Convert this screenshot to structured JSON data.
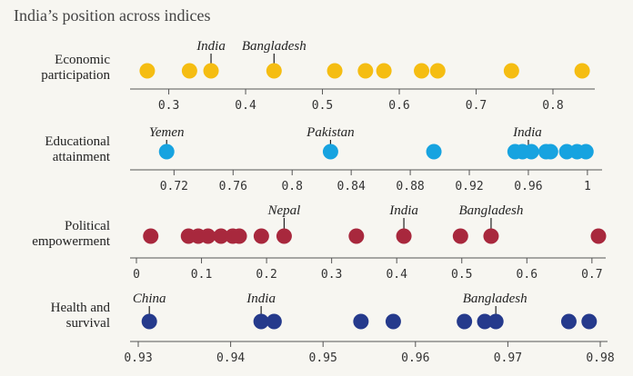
{
  "chart_data": {
    "type": "scatter",
    "title": "India’s position across indices",
    "colors": {
      "background": "#f7f6f1",
      "axis": "#555555",
      "economic": "#f5bd12",
      "education": "#17a3e0",
      "political": "#a8283d",
      "health": "#253a8c"
    },
    "panels": [
      {
        "id": "economic",
        "label_lines": [
          "Economic",
          "participation"
        ],
        "color_key": "economic",
        "range": [
          0.265,
          0.845
        ],
        "ticks": [
          {
            "v": 0.3,
            "t": "0.3"
          },
          {
            "v": 0.4,
            "t": "0.4"
          },
          {
            "v": 0.5,
            "t": "0.5"
          },
          {
            "v": 0.6,
            "t": "0.6"
          },
          {
            "v": 0.7,
            "t": "0.7"
          },
          {
            "v": 0.8,
            "t": "0.8"
          }
        ],
        "values": [
          0.272,
          0.327,
          0.355,
          0.437,
          0.516,
          0.556,
          0.58,
          0.629,
          0.65,
          0.746,
          0.838
        ],
        "annotations": [
          {
            "label": "India",
            "value": 0.355,
            "dx": 0
          },
          {
            "label": "Bangladesh",
            "value": 0.437,
            "dx": 0
          }
        ]
      },
      {
        "id": "education",
        "label_lines": [
          "Educational",
          "attainment"
        ],
        "color_key": "education",
        "range": [
          0.705,
          1.005
        ],
        "ticks": [
          {
            "v": 0.72,
            "t": "0.72"
          },
          {
            "v": 0.76,
            "t": "0.76"
          },
          {
            "v": 0.8,
            "t": "0.8"
          },
          {
            "v": 0.84,
            "t": "0.84"
          },
          {
            "v": 0.88,
            "t": "0.88"
          },
          {
            "v": 0.92,
            "t": "0.92"
          },
          {
            "v": 0.96,
            "t": "0.96"
          },
          {
            "v": 1,
            "t": "1"
          }
        ],
        "values": [
          0.715,
          0.826,
          0.896,
          0.951,
          0.956,
          0.962,
          0.972,
          0.975,
          0.986,
          0.993,
          0.999
        ],
        "annotations": [
          {
            "label": "Yemen",
            "value": 0.715,
            "dx": 0
          },
          {
            "label": "Pakistan",
            "value": 0.826,
            "dx": 0
          },
          {
            "label": "India",
            "value": 0.96,
            "dx": -1
          }
        ]
      },
      {
        "id": "political",
        "label_lines": [
          "Political",
          "empowerment"
        ],
        "color_key": "political",
        "range": [
          0.0,
          0.71
        ],
        "ticks": [
          {
            "v": 0,
            "t": "0"
          },
          {
            "v": 0.1,
            "t": "0.1"
          },
          {
            "v": 0.2,
            "t": "0.2"
          },
          {
            "v": 0.3,
            "t": "0.3"
          },
          {
            "v": 0.4,
            "t": "0.4"
          },
          {
            "v": 0.5,
            "t": "0.5"
          },
          {
            "v": 0.6,
            "t": "0.6"
          },
          {
            "v": 0.7,
            "t": "0.7"
          }
        ],
        "values": [
          0.022,
          0.08,
          0.095,
          0.11,
          0.13,
          0.148,
          0.158,
          0.192,
          0.227,
          0.338,
          0.411,
          0.498,
          0.545,
          0.71
        ],
        "annotations": [
          {
            "label": "Nepal",
            "value": 0.227,
            "dx": 0
          },
          {
            "label": "India",
            "value": 0.411,
            "dx": 0
          },
          {
            "label": "Bangladesh",
            "value": 0.545,
            "dx": 0
          }
        ]
      },
      {
        "id": "health",
        "label_lines": [
          "Health and",
          "survival"
        ],
        "color_key": "health",
        "range": [
          0.93,
          0.98
        ],
        "ticks": [
          {
            "v": 0.93,
            "t": "0.93"
          },
          {
            "v": 0.94,
            "t": "0.94"
          },
          {
            "v": 0.95,
            "t": "0.95"
          },
          {
            "v": 0.96,
            "t": "0.96"
          },
          {
            "v": 0.97,
            "t": "0.97"
          },
          {
            "v": 0.98,
            "t": "0.98"
          }
        ],
        "values": [
          0.9312,
          0.9433,
          0.9447,
          0.9541,
          0.9576,
          0.9653,
          0.9675,
          0.9687,
          0.9766,
          0.9788
        ],
        "annotations": [
          {
            "label": "China",
            "value": 0.9312,
            "dx": 0
          },
          {
            "label": "India",
            "value": 0.9433,
            "dx": 0
          },
          {
            "label": "Bangladesh",
            "value": 0.9687,
            "dx": -1
          }
        ]
      }
    ]
  }
}
